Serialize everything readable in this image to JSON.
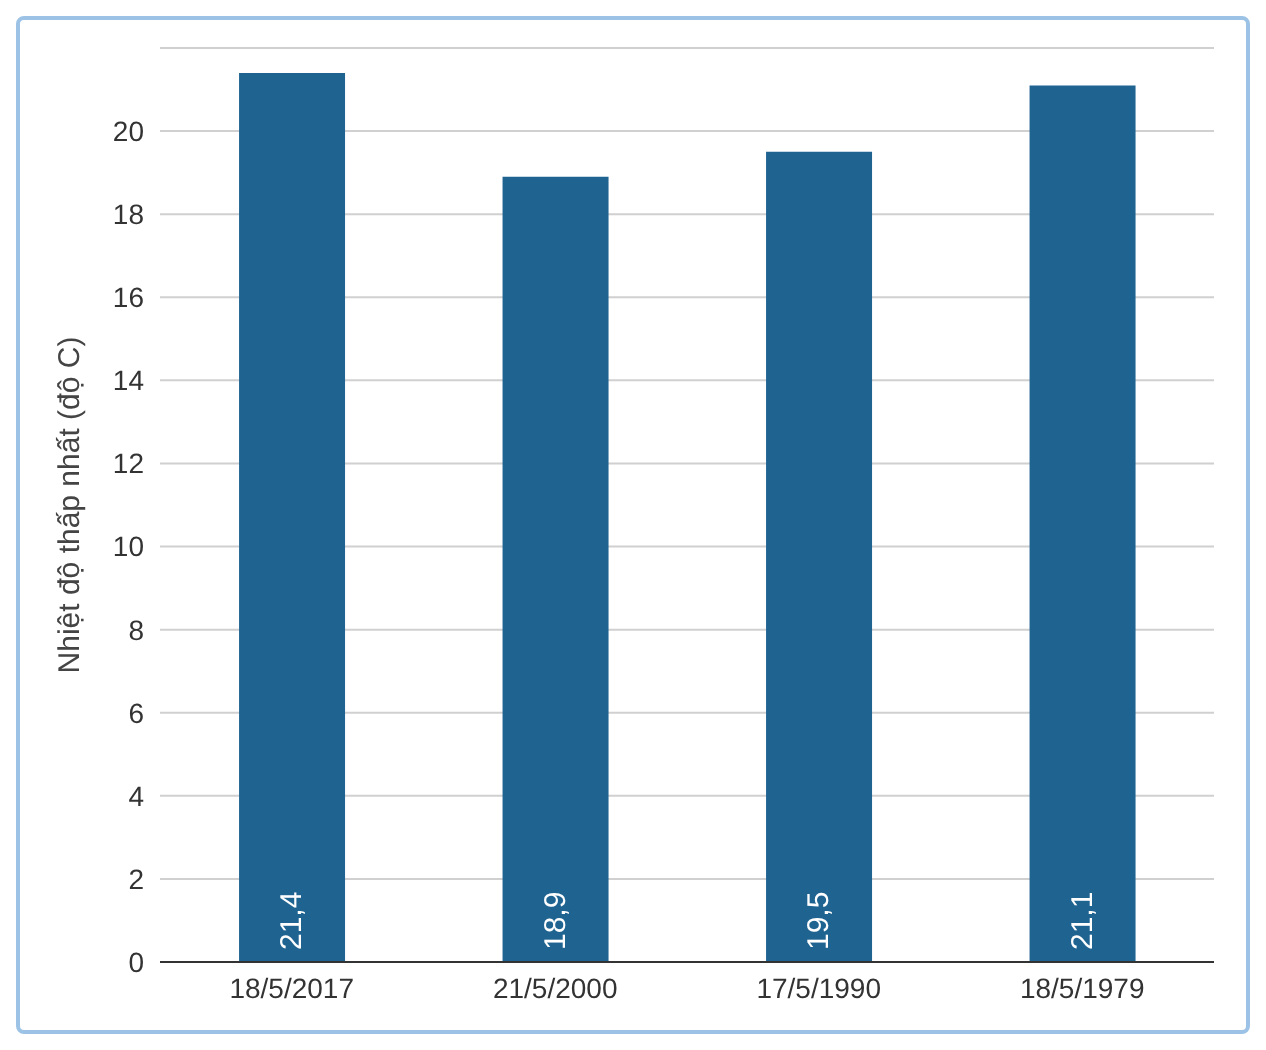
{
  "chart_data": {
    "type": "bar",
    "ylabel": "Nhiệt độ thấp nhất (độ C)",
    "categories": [
      "18/5/2017",
      "21/5/2000",
      "17/5/1990",
      "18/5/1979"
    ],
    "values": [
      21.4,
      18.9,
      19.5,
      21.1
    ],
    "value_labels": [
      "21,4",
      "18,9",
      "19,5",
      "21,1"
    ],
    "color": "#1f6391",
    "ylim": [
      0,
      22
    ],
    "yticks": [
      0,
      2,
      4,
      6,
      8,
      10,
      12,
      14,
      16,
      18,
      20
    ],
    "grid": "y"
  }
}
